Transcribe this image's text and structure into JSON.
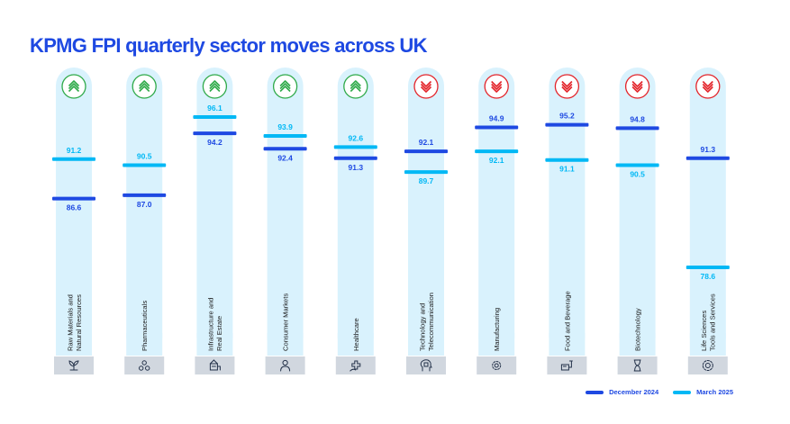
{
  "title": "KPMG FPI quarterly sector moves across UK",
  "colors": {
    "dec": "#1e49e2",
    "mar": "#00b8f5",
    "column": "#d9f2fd",
    "up": "#2faa4a",
    "down": "#e3252b",
    "icon_box": "#d1d7df"
  },
  "legend": [
    {
      "label": "December 2024",
      "color": "#1e49e2"
    },
    {
      "label": "March 2025",
      "color": "#00b8f5"
    }
  ],
  "chart_data": {
    "type": "dot",
    "title": "KPMG FPI quarterly sector moves across UK",
    "categories": [
      "Raw Materials and Natural Resources",
      "Pharmaceuticals",
      "Infrastructure and Real Estate",
      "Consumer Markets",
      "Healthcare",
      "Technology and Telecommunication",
      "Manufacturing",
      "Food and Beverage",
      "Biotechnology",
      "Life Sciences Tools and Services"
    ],
    "series": [
      {
        "name": "December 2024",
        "values": [
          86.6,
          87.0,
          94.2,
          92.4,
          91.3,
          92.1,
          94.9,
          95.2,
          94.8,
          91.3
        ]
      },
      {
        "name": "March 2025",
        "values": [
          91.2,
          90.5,
          96.1,
          93.9,
          92.6,
          89.7,
          92.1,
          91.1,
          90.5,
          78.6
        ]
      }
    ],
    "value_labels": {
      "December 2024": [
        "86.6",
        "87.0",
        "94.2",
        "92.4",
        "91.3",
        "92.1",
        "94.9",
        "95.2",
        "94.8",
        "91.3"
      ],
      "March 2025": [
        "91.2",
        "90.5",
        "96.1",
        "93.9",
        "92.6",
        "89.7",
        "92.1",
        "91.1",
        "90.5",
        "78.6"
      ]
    },
    "direction": [
      "up",
      "up",
      "up",
      "up",
      "up",
      "down",
      "down",
      "down",
      "down",
      "down"
    ],
    "label_lines": [
      [
        "Raw Materials and",
        "Natural Resources"
      ],
      [
        "Pharmaceuticals"
      ],
      [
        "Infrastructure and",
        "Real Estate"
      ],
      [
        "Consumer Markets"
      ],
      [
        "Healthcare"
      ],
      [
        "Technology and",
        "Telecommunication"
      ],
      [
        "Manufacturing"
      ],
      [
        "Food and Beverage"
      ],
      [
        "Biotechnology"
      ],
      [
        "Life Sciences",
        "Tools and Services"
      ]
    ],
    "icons": [
      "plant-icon",
      "molecule-icon",
      "building-icon",
      "person-icon",
      "medical-cross-icon",
      "head-chip-icon",
      "gear-icon",
      "food-machine-icon",
      "hourglass-icon",
      "settings-icon"
    ],
    "ylim": [
      78,
      97
    ],
    "grid": false,
    "legend_position": "bottom-right"
  }
}
